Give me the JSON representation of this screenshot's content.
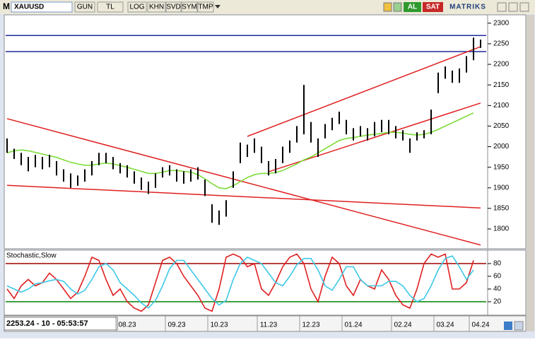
{
  "toolbar": {
    "logo": "M",
    "symbol": "XAUUSD",
    "buttons": [
      "GUN",
      "TL",
      "LOG",
      "KHN",
      "SVD",
      "SYM",
      "TMP"
    ],
    "buy": "AL",
    "sell": "SAT",
    "brand": "MATRIKS"
  },
  "status": "2253.24 - 10 - 05:53:57",
  "chart_data": [
    {
      "type": "ohlc",
      "color": "#000000",
      "high": [
        2020,
        1995,
        1985,
        1975,
        1980,
        1975,
        1980,
        1965,
        1945,
        1935,
        1930,
        1945,
        1965,
        1985,
        1985,
        1975,
        1960,
        1955,
        1940,
        1925,
        1915,
        1935,
        1950,
        1955,
        1945,
        1940,
        1945,
        1950,
        1920,
        1860,
        1845,
        1870,
        1940,
        2010,
        2005,
        2020,
        2000,
        1965,
        1970,
        2000,
        2015,
        2050,
        2150,
        2060,
        2020,
        2055,
        2070,
        2085,
        2065,
        2045,
        2050,
        2045,
        2060,
        2065,
        2065,
        2050,
        2040,
        2020,
        2035,
        2040,
        2090,
        2180,
        2195,
        2185,
        2190,
        2220,
        2265,
        2260
      ],
      "low": [
        1985,
        1970,
        1955,
        1940,
        1950,
        1945,
        1950,
        1930,
        1915,
        1900,
        1905,
        1915,
        1930,
        1955,
        1960,
        1945,
        1935,
        1925,
        1910,
        1895,
        1885,
        1900,
        1925,
        1930,
        1915,
        1910,
        1915,
        1920,
        1880,
        1815,
        1810,
        1830,
        1900,
        1960,
        1975,
        1985,
        1960,
        1930,
        1935,
        1960,
        1985,
        2010,
        2030,
        2010,
        1975,
        2020,
        2040,
        2055,
        2030,
        2015,
        2025,
        2015,
        2025,
        2035,
        2030,
        2020,
        2015,
        1985,
        2015,
        2020,
        2030,
        2130,
        2165,
        2155,
        2155,
        2180,
        2210,
        2240
      ],
      "moving_average": {
        "color": "#7ddc3a",
        "values": [
          1985,
          1990,
          1992,
          1990,
          1986,
          1982,
          1978,
          1974,
          1968,
          1962,
          1958,
          1955,
          1955,
          1958,
          1960,
          1958,
          1954,
          1950,
          1945,
          1940,
          1935,
          1935,
          1938,
          1942,
          1942,
          1940,
          1938,
          1932,
          1922,
          1910,
          1900,
          1898,
          1905,
          1915,
          1925,
          1932,
          1935,
          1935,
          1937,
          1942,
          1950,
          1958,
          1968,
          1975,
          1985,
          1995,
          2005,
          2015,
          2020,
          2022,
          2025,
          2028,
          2030,
          2032,
          2035,
          2035,
          2033,
          2030,
          2028,
          2030,
          2035,
          2042,
          2050,
          2058,
          2066,
          2074,
          2082,
          null
        ]
      },
      "levels": [
        {
          "value": 2270,
          "color": "#1f2a9c"
        },
        {
          "value": 2231,
          "color": "#1f2a9c"
        }
      ],
      "trendlines": [
        {
          "x": [
            0,
            67
          ],
          "y": [
            2068,
            1761
          ],
          "color": "#e02020"
        },
        {
          "x": [
            0,
            67
          ],
          "y": [
            1906,
            1851
          ],
          "color": "#e02020"
        },
        {
          "x": [
            34,
            67
          ],
          "y": [
            2025,
            2243
          ],
          "color": "#e02020"
        },
        {
          "x": [
            37,
            67
          ],
          "y": [
            1939,
            2106
          ],
          "color": "#e02020"
        }
      ],
      "ylim": [
        1752,
        2322
      ],
      "yticks": [
        1800,
        1850,
        1900,
        1950,
        2000,
        2050,
        2100,
        2150,
        2200,
        2250,
        2300
      ]
    },
    {
      "type": "line",
      "title": "Stochastic,Slow",
      "categories": [
        null,
        null,
        null,
        null,
        null,
        null,
        null,
        null,
        null,
        null,
        null,
        null,
        null,
        null,
        null,
        null,
        null,
        "08.23",
        null,
        null,
        null,
        null,
        null,
        null,
        "09.23",
        null,
        null,
        null,
        null,
        null,
        "10.23",
        null,
        null,
        null,
        null,
        null,
        null,
        "11.23",
        null,
        null,
        null,
        null,
        null,
        "12.23",
        null,
        null,
        null,
        null,
        null,
        "01.24",
        null,
        null,
        null,
        null,
        null,
        null,
        "02.24",
        null,
        null,
        null,
        null,
        null,
        "03.24",
        null,
        null,
        null,
        null,
        "04.24"
      ],
      "series": [
        {
          "color": "#e02020",
          "values": [
            40,
            25,
            45,
            55,
            45,
            50,
            65,
            55,
            40,
            25,
            35,
            60,
            90,
            85,
            55,
            30,
            40,
            20,
            10,
            5,
            15,
            50,
            85,
            90,
            80,
            60,
            45,
            30,
            10,
            5,
            40,
            90,
            95,
            90,
            75,
            80,
            40,
            30,
            50,
            75,
            90,
            95,
            80,
            40,
            20,
            60,
            90,
            80,
            45,
            30,
            55,
            45,
            40,
            70,
            55,
            30,
            15,
            10,
            40,
            80,
            95,
            90,
            95,
            40,
            40,
            50,
            85,
            null
          ]
        },
        {
          "color": "#3cc8e6",
          "values": [
            45,
            40,
            35,
            40,
            48,
            50,
            53,
            55,
            52,
            40,
            32,
            38,
            55,
            75,
            80,
            70,
            50,
            40,
            30,
            18,
            10,
            22,
            45,
            72,
            85,
            85,
            70,
            55,
            40,
            25,
            15,
            22,
            55,
            80,
            90,
            85,
            80,
            65,
            50,
            45,
            60,
            78,
            88,
            88,
            70,
            45,
            38,
            55,
            75,
            75,
            55,
            45,
            45,
            45,
            52,
            52,
            45,
            30,
            20,
            25,
            45,
            70,
            88,
            92,
            75,
            55,
            70,
            null
          ]
        }
      ],
      "levels": [
        {
          "value": 80,
          "color": "#a00000"
        },
        {
          "value": 20,
          "color": "#008000"
        }
      ],
      "ylim": [
        0,
        100
      ],
      "yticks": [
        20,
        40,
        60,
        80
      ]
    }
  ]
}
